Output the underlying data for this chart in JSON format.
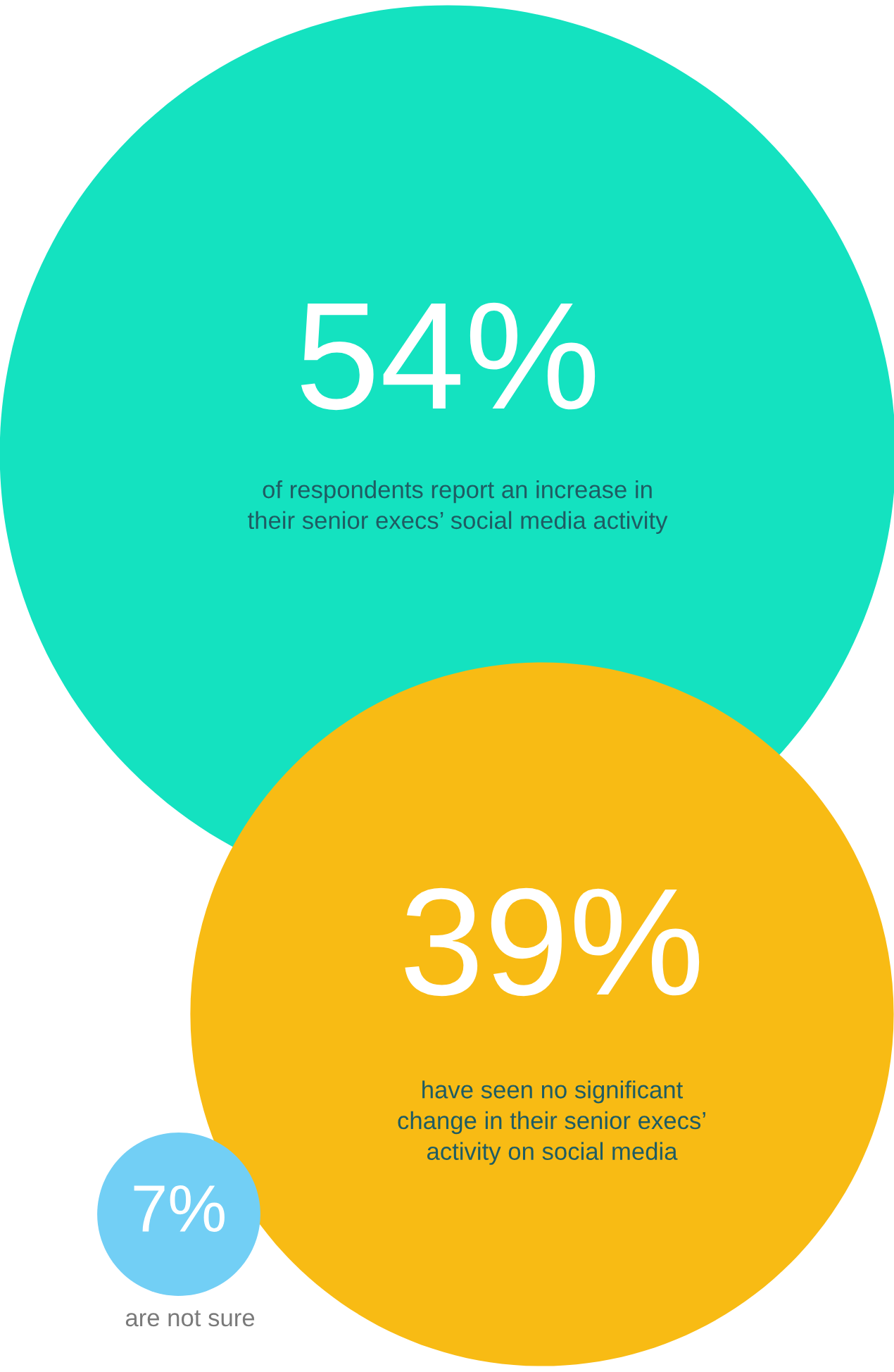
{
  "chart_data": {
    "type": "other",
    "categories": [
      "of respondents report an increase in\ntheir senior execs’ social media activity",
      "have seen no significant\nchange in their senior execs’\nactivity on social media",
      "are not sure"
    ],
    "values": [
      54,
      39,
      7
    ],
    "value_labels": [
      "54%",
      "39%",
      "7%"
    ],
    "colors": [
      "#14e2c0",
      "#f8bb14",
      "#72cff5"
    ]
  }
}
